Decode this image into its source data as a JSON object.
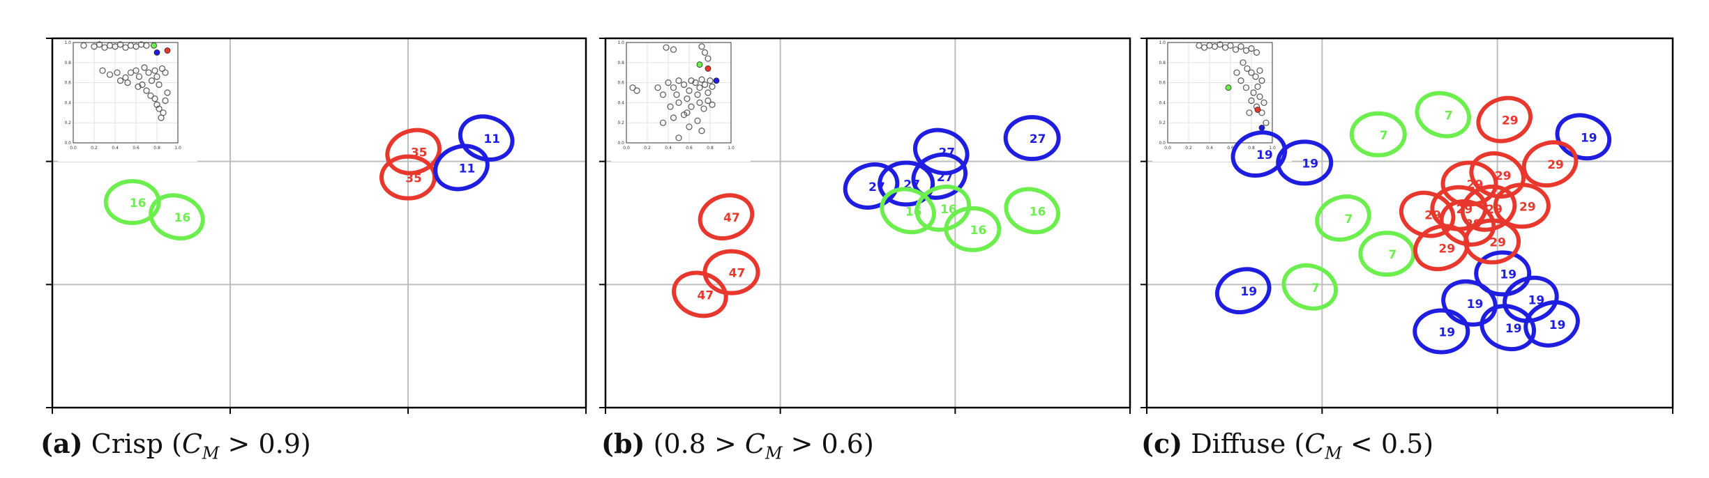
{
  "colors": {
    "red": "#e8372c",
    "blue": "#1f1ee0",
    "green": "#6dee4f",
    "grid": "#bdbdbd",
    "axis": "#000000",
    "inset_point": "#555555"
  },
  "captions": [
    {
      "letter": "(a)",
      "text_before": "Crisp (",
      "math_main": "C",
      "math_sub": "M",
      "math_after": " > 0.9)"
    },
    {
      "letter": "(b)",
      "text_before": "(0.8 > ",
      "math_main": "C",
      "math_sub": "M",
      "math_after": " > 0.6)"
    },
    {
      "letter": "(c)",
      "text_before": "Diffuse (",
      "math_main": "C",
      "math_sub": "M",
      "math_after": " < 0.5)"
    }
  ],
  "chart_data": [
    {
      "type": "scatter",
      "title": "Crisp",
      "xlim": [
        0,
        3
      ],
      "ylim": [
        0,
        3
      ],
      "ellipses": [
        {
          "color": "red",
          "label": "35",
          "x": 2.03,
          "y": 2.08
        },
        {
          "color": "red",
          "label": "35",
          "x": 2.0,
          "y": 1.87
        },
        {
          "color": "blue",
          "label": "11",
          "x": 2.44,
          "y": 2.19
        },
        {
          "color": "blue",
          "label": "11",
          "x": 2.3,
          "y": 1.95
        },
        {
          "color": "green",
          "label": "16",
          "x": 0.45,
          "y": 1.67
        },
        {
          "color": "green",
          "label": "16",
          "x": 0.7,
          "y": 1.55
        }
      ],
      "inset": {
        "xlim": [
          0.0,
          1.0
        ],
        "ylim": [
          0.0,
          1.0
        ],
        "ticks": [
          "0.0",
          "0.2",
          "0.4",
          "0.6",
          "0.8",
          "1.0"
        ],
        "points": [
          [
            0.1,
            0.97
          ],
          [
            0.2,
            0.96
          ],
          [
            0.25,
            0.98
          ],
          [
            0.3,
            0.95
          ],
          [
            0.35,
            0.97
          ],
          [
            0.4,
            0.96
          ],
          [
            0.45,
            0.98
          ],
          [
            0.5,
            0.95
          ],
          [
            0.55,
            0.97
          ],
          [
            0.6,
            0.96
          ],
          [
            0.65,
            0.98
          ],
          [
            0.7,
            0.97
          ],
          [
            0.28,
            0.72
          ],
          [
            0.35,
            0.68
          ],
          [
            0.42,
            0.7
          ],
          [
            0.5,
            0.65
          ],
          [
            0.55,
            0.7
          ],
          [
            0.6,
            0.72
          ],
          [
            0.63,
            0.66
          ],
          [
            0.68,
            0.75
          ],
          [
            0.72,
            0.7
          ],
          [
            0.75,
            0.62
          ],
          [
            0.78,
            0.72
          ],
          [
            0.8,
            0.66
          ],
          [
            0.82,
            0.58
          ],
          [
            0.85,
            0.74
          ],
          [
            0.88,
            0.7
          ],
          [
            0.62,
            0.56
          ],
          [
            0.7,
            0.52
          ],
          [
            0.74,
            0.47
          ],
          [
            0.78,
            0.44
          ],
          [
            0.8,
            0.38
          ],
          [
            0.82,
            0.34
          ],
          [
            0.86,
            0.3
          ],
          [
            0.88,
            0.42
          ],
          [
            0.9,
            0.5
          ],
          [
            0.84,
            0.25
          ],
          [
            0.66,
            0.58
          ],
          [
            0.52,
            0.6
          ],
          [
            0.45,
            0.62
          ]
        ],
        "highlights": [
          {
            "color": "green",
            "x": 0.77,
            "y": 0.97
          },
          {
            "color": "blue",
            "x": 0.8,
            "y": 0.9
          },
          {
            "color": "red",
            "x": 0.9,
            "y": 0.92
          }
        ]
      }
    },
    {
      "type": "scatter",
      "title": "",
      "xlim": [
        0,
        3
      ],
      "ylim": [
        0,
        3
      ],
      "ellipses": [
        {
          "color": "red",
          "label": "47",
          "x": 0.69,
          "y": 1.55
        },
        {
          "color": "red",
          "label": "47",
          "x": 0.72,
          "y": 1.1
        },
        {
          "color": "red",
          "label": "47",
          "x": 0.54,
          "y": 0.92
        },
        {
          "color": "blue",
          "label": "27",
          "x": 1.52,
          "y": 1.8
        },
        {
          "color": "blue",
          "label": "27",
          "x": 1.72,
          "y": 1.82
        },
        {
          "color": "blue",
          "label": "27",
          "x": 1.92,
          "y": 2.08
        },
        {
          "color": "blue",
          "label": "27",
          "x": 1.91,
          "y": 1.88
        },
        {
          "color": "blue",
          "label": "27",
          "x": 2.44,
          "y": 2.19
        },
        {
          "color": "green",
          "label": "16",
          "x": 1.73,
          "y": 1.6
        },
        {
          "color": "green",
          "label": "16",
          "x": 1.93,
          "y": 1.62
        },
        {
          "color": "green",
          "label": "16",
          "x": 2.1,
          "y": 1.45
        },
        {
          "color": "green",
          "label": "16",
          "x": 2.44,
          "y": 1.6
        }
      ],
      "inset": {
        "xlim": [
          0.0,
          1.0
        ],
        "ylim": [
          0.0,
          1.0
        ],
        "ticks": [
          "0.0",
          "0.2",
          "0.4",
          "0.6",
          "0.8",
          "1.0"
        ],
        "points": [
          [
            0.38,
            0.95
          ],
          [
            0.45,
            0.93
          ],
          [
            0.72,
            0.96
          ],
          [
            0.75,
            0.9
          ],
          [
            0.78,
            0.84
          ],
          [
            0.06,
            0.55
          ],
          [
            0.1,
            0.52
          ],
          [
            0.3,
            0.55
          ],
          [
            0.35,
            0.48
          ],
          [
            0.4,
            0.6
          ],
          [
            0.45,
            0.55
          ],
          [
            0.5,
            0.62
          ],
          [
            0.55,
            0.58
          ],
          [
            0.6,
            0.52
          ],
          [
            0.62,
            0.62
          ],
          [
            0.66,
            0.6
          ],
          [
            0.7,
            0.55
          ],
          [
            0.72,
            0.63
          ],
          [
            0.75,
            0.58
          ],
          [
            0.78,
            0.5
          ],
          [
            0.8,
            0.62
          ],
          [
            0.82,
            0.56
          ],
          [
            0.68,
            0.48
          ],
          [
            0.58,
            0.44
          ],
          [
            0.5,
            0.4
          ],
          [
            0.42,
            0.36
          ],
          [
            0.62,
            0.36
          ],
          [
            0.7,
            0.4
          ],
          [
            0.74,
            0.34
          ],
          [
            0.78,
            0.42
          ],
          [
            0.82,
            0.38
          ],
          [
            0.45,
            0.25
          ],
          [
            0.55,
            0.28
          ],
          [
            0.68,
            0.22
          ],
          [
            0.6,
            0.16
          ],
          [
            0.72,
            0.12
          ],
          [
            0.35,
            0.2
          ],
          [
            0.5,
            0.05
          ],
          [
            0.58,
            0.3
          ],
          [
            0.48,
            0.48
          ]
        ],
        "highlights": [
          {
            "color": "green",
            "x": 0.7,
            "y": 0.78
          },
          {
            "color": "red",
            "x": 0.78,
            "y": 0.74
          },
          {
            "color": "blue",
            "x": 0.86,
            "y": 0.62
          }
        ]
      }
    },
    {
      "type": "scatter",
      "title": "Diffuse",
      "xlim": [
        0,
        3
      ],
      "ylim": [
        0,
        3
      ],
      "ellipses": [
        {
          "color": "blue",
          "label": "19",
          "x": 0.64,
          "y": 2.06
        },
        {
          "color": "blue",
          "label": "19",
          "x": 0.9,
          "y": 1.99
        },
        {
          "color": "blue",
          "label": "19",
          "x": 2.49,
          "y": 2.2
        },
        {
          "color": "blue",
          "label": "19",
          "x": 0.55,
          "y": 0.95
        },
        {
          "color": "blue",
          "label": "19",
          "x": 2.03,
          "y": 1.09
        },
        {
          "color": "blue",
          "label": "19",
          "x": 1.84,
          "y": 0.85
        },
        {
          "color": "blue",
          "label": "19",
          "x": 2.19,
          "y": 0.88
        },
        {
          "color": "blue",
          "label": "19",
          "x": 1.68,
          "y": 0.62
        },
        {
          "color": "blue",
          "label": "19",
          "x": 2.06,
          "y": 0.65
        },
        {
          "color": "blue",
          "label": "19",
          "x": 2.31,
          "y": 0.68
        },
        {
          "color": "green",
          "label": "7",
          "x": 1.32,
          "y": 2.22
        },
        {
          "color": "green",
          "label": "7",
          "x": 1.69,
          "y": 2.38
        },
        {
          "color": "green",
          "label": "7",
          "x": 1.12,
          "y": 1.54
        },
        {
          "color": "green",
          "label": "7",
          "x": 1.37,
          "y": 1.25
        },
        {
          "color": "green",
          "label": "7",
          "x": 0.93,
          "y": 0.98
        },
        {
          "color": "red",
          "label": "29",
          "x": 2.04,
          "y": 2.34
        },
        {
          "color": "red",
          "label": "29",
          "x": 1.84,
          "y": 1.82
        },
        {
          "color": "red",
          "label": "29",
          "x": 2.0,
          "y": 1.89
        },
        {
          "color": "red",
          "label": "29",
          "x": 2.3,
          "y": 1.98
        },
        {
          "color": "red",
          "label": "29",
          "x": 1.78,
          "y": 1.62
        },
        {
          "color": "red",
          "label": "29",
          "x": 1.6,
          "y": 1.57
        },
        {
          "color": "red",
          "label": "29",
          "x": 1.95,
          "y": 1.62
        },
        {
          "color": "red",
          "label": "29",
          "x": 2.14,
          "y": 1.64
        },
        {
          "color": "red",
          "label": "29",
          "x": 1.83,
          "y": 1.5
        },
        {
          "color": "red",
          "label": "29",
          "x": 1.68,
          "y": 1.3
        },
        {
          "color": "red",
          "label": "29",
          "x": 1.97,
          "y": 1.35
        }
      ],
      "inset": {
        "xlim": [
          0.0,
          1.0
        ],
        "ylim": [
          0.0,
          1.0
        ],
        "ticks": [
          "0.0",
          "0.2",
          "0.4",
          "0.6",
          "0.8",
          "1.0"
        ],
        "points": [
          [
            0.3,
            0.97
          ],
          [
            0.35,
            0.95
          ],
          [
            0.4,
            0.97
          ],
          [
            0.45,
            0.96
          ],
          [
            0.5,
            0.98
          ],
          [
            0.55,
            0.95
          ],
          [
            0.6,
            0.97
          ],
          [
            0.65,
            0.93
          ],
          [
            0.7,
            0.96
          ],
          [
            0.75,
            0.92
          ],
          [
            0.8,
            0.94
          ],
          [
            0.85,
            0.9
          ],
          [
            0.72,
            0.8
          ],
          [
            0.76,
            0.74
          ],
          [
            0.8,
            0.7
          ],
          [
            0.84,
            0.66
          ],
          [
            0.88,
            0.72
          ],
          [
            0.9,
            0.62
          ],
          [
            0.86,
            0.56
          ],
          [
            0.82,
            0.5
          ],
          [
            0.88,
            0.46
          ],
          [
            0.92,
            0.4
          ],
          [
            0.85,
            0.36
          ],
          [
            0.8,
            0.42
          ],
          [
            0.75,
            0.55
          ],
          [
            0.7,
            0.62
          ],
          [
            0.66,
            0.7
          ],
          [
            0.9,
            0.3
          ],
          [
            0.94,
            0.2
          ],
          [
            0.78,
            0.3
          ]
        ],
        "highlights": [
          {
            "color": "green",
            "x": 0.58,
            "y": 0.55
          },
          {
            "color": "red",
            "x": 0.86,
            "y": 0.33
          },
          {
            "color": "blue",
            "x": 0.9,
            "y": 0.15
          }
        ]
      }
    }
  ]
}
